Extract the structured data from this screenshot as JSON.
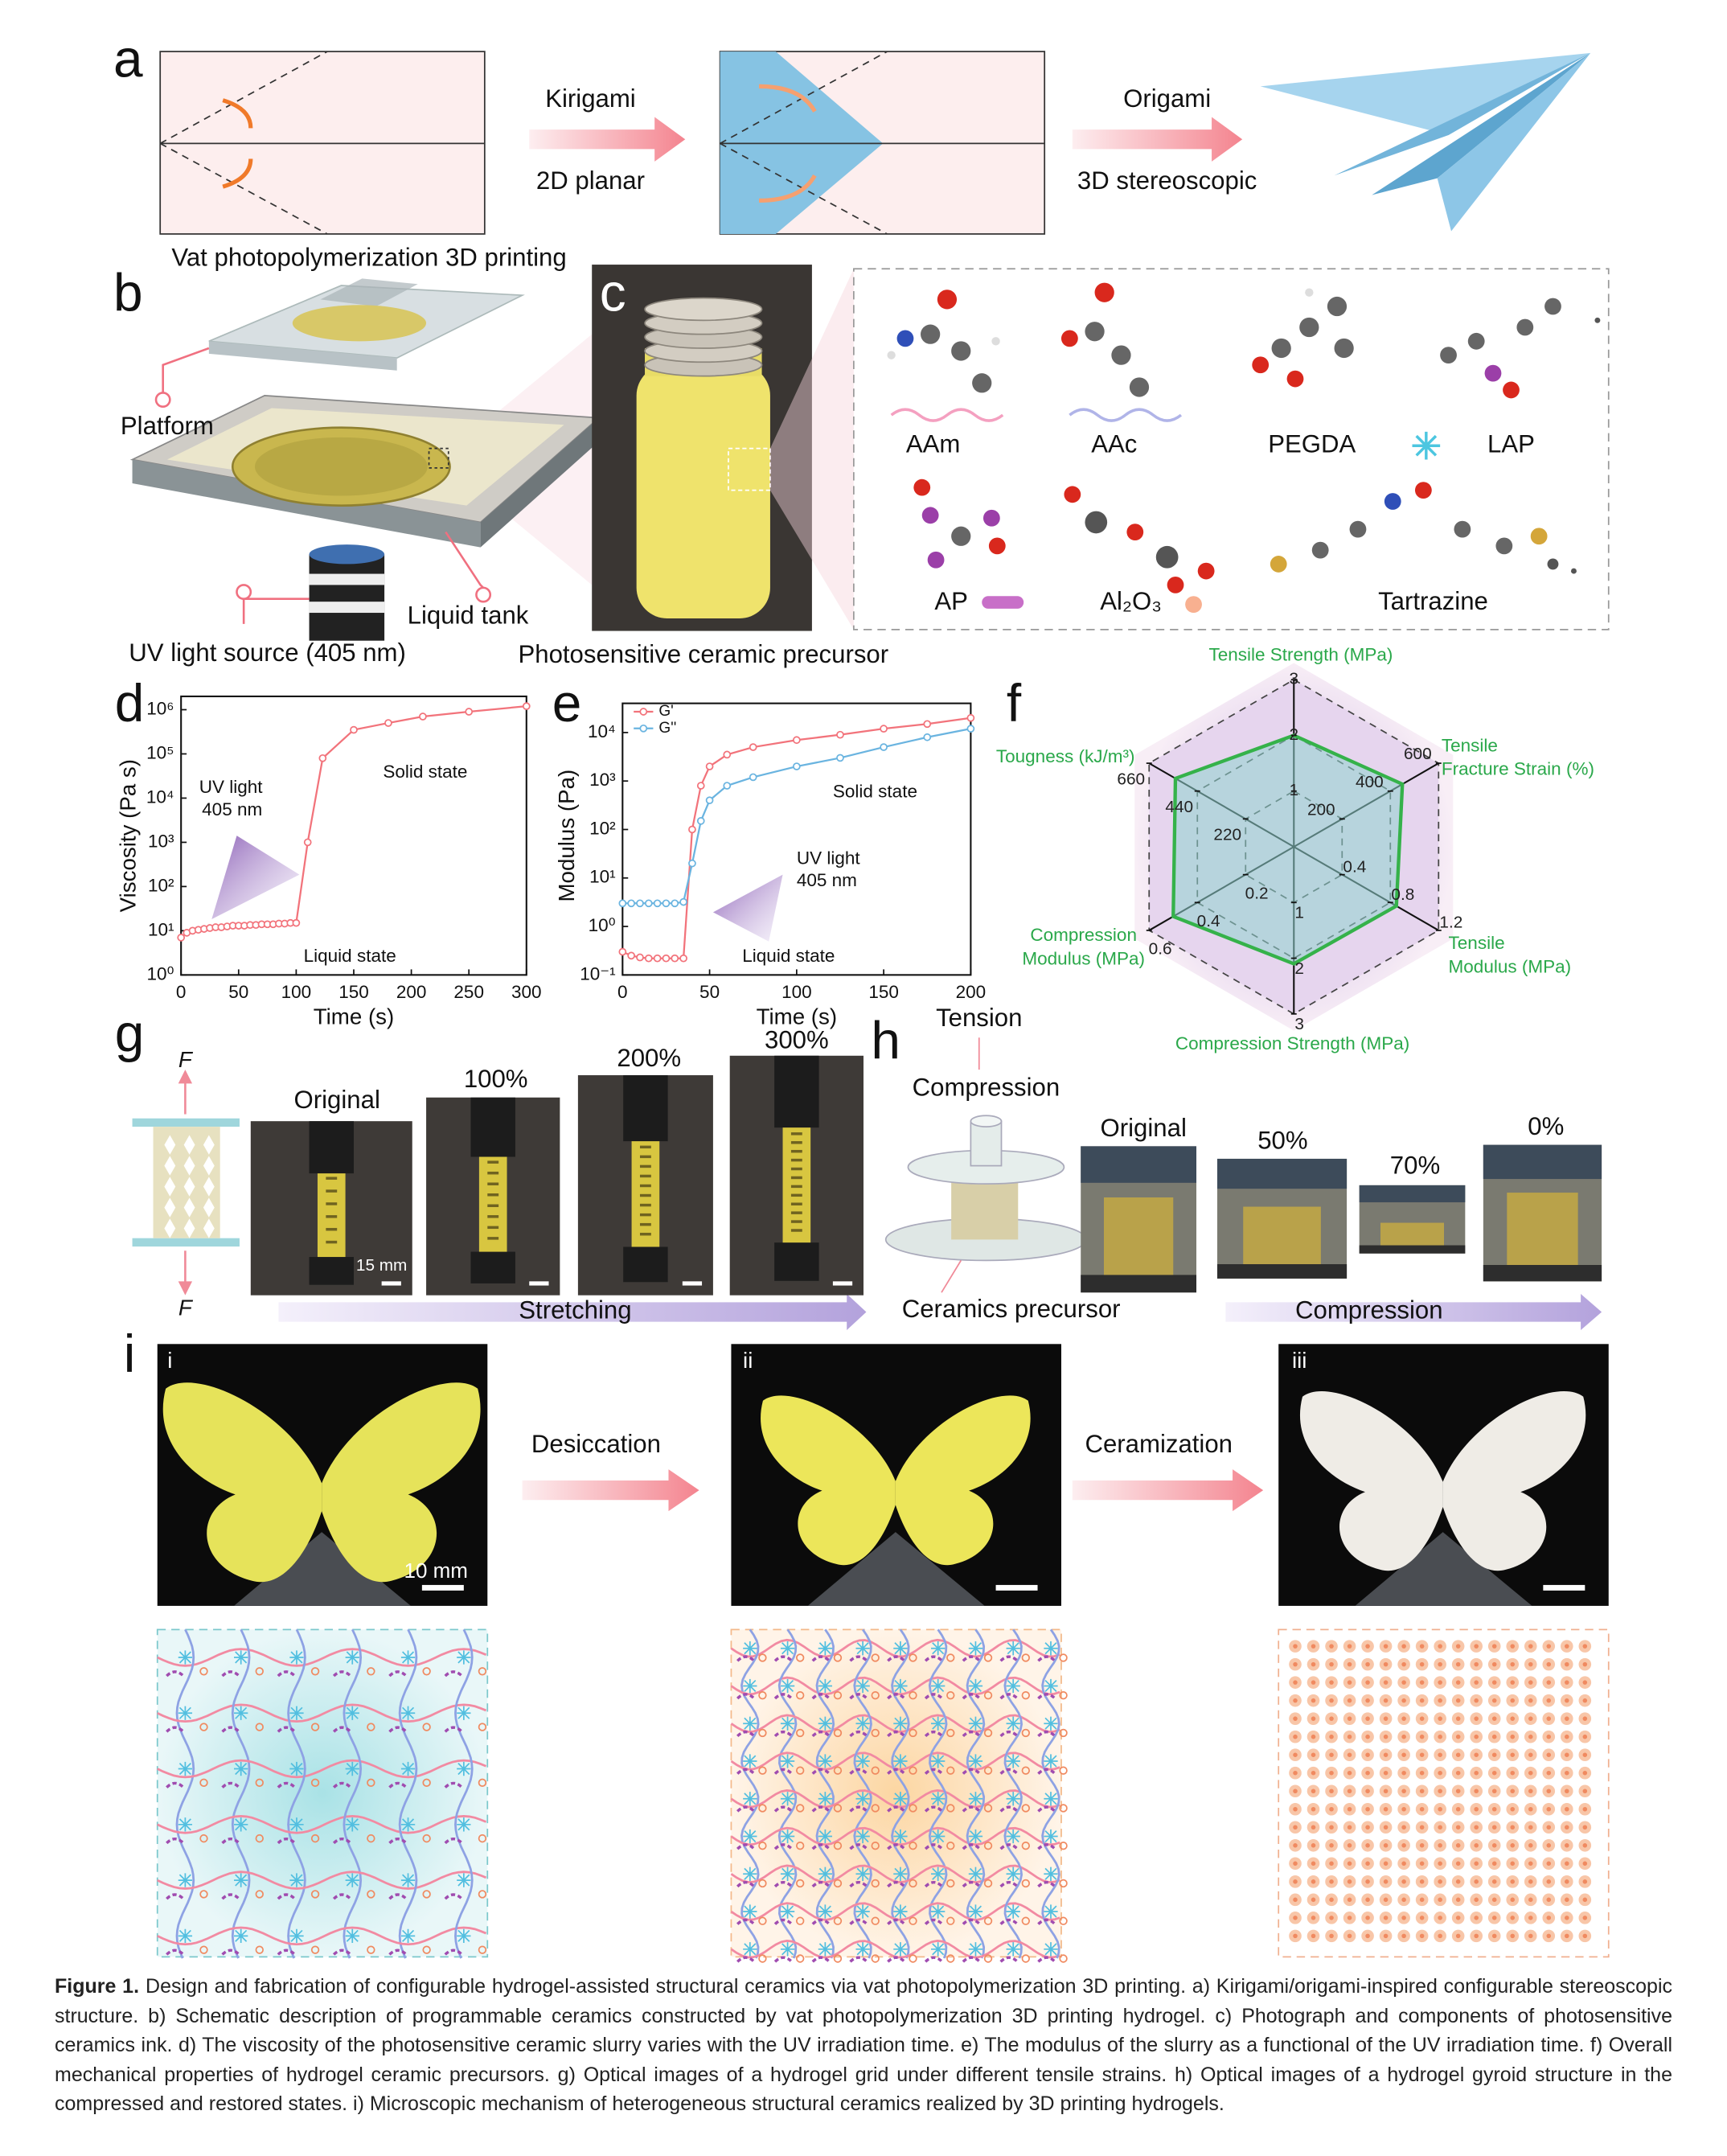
{
  "panels": {
    "a": {
      "label": "a",
      "texts": [
        "Kirigami",
        "2D planar",
        "Origami",
        "3D stereoscopic"
      ]
    },
    "b": {
      "label": "b",
      "texts": [
        "Vat photopolymerization 3D printing",
        "Platform",
        "Liquid tank",
        "UV light source (405 nm)"
      ]
    },
    "c": {
      "label": "c",
      "texts": [
        "Photosensitive ceramic precursor",
        "AAm",
        "AAc",
        "PEGDA",
        "LAP",
        "AP",
        "Al₂O₃",
        "Tartrazine"
      ]
    },
    "d": {
      "label": "d"
    },
    "e": {
      "label": "e"
    },
    "f": {
      "label": "f"
    },
    "g": {
      "label": "g",
      "texts": [
        "F",
        "F",
        "Original",
        "100%",
        "200%",
        "300%",
        "15 mm",
        "Stretching"
      ]
    },
    "h": {
      "label": "h",
      "texts": [
        "Tension",
        "Compression",
        "Original",
        "50%",
        "70%",
        "0%",
        "Ceramics precursor",
        "Compression"
      ]
    },
    "i": {
      "label": "i",
      "texts": [
        "i",
        "ii",
        "iii",
        "Desiccation",
        "Ceramization",
        "10 mm"
      ]
    }
  },
  "chart_data": [
    {
      "type": "line",
      "x_label": "Time (s)",
      "y_label": "Viscosity (Pa s)",
      "log_y": true,
      "xlim": [
        0,
        300
      ],
      "xticks": [
        0,
        50,
        100,
        150,
        200,
        250,
        300
      ],
      "ylim": [
        1,
        2000000
      ],
      "yticks": [
        {
          "value": 1,
          "label": "10⁰"
        },
        {
          "value": 10,
          "label": "10¹"
        },
        {
          "value": 100,
          "label": "10²"
        },
        {
          "value": 1000,
          "label": "10³"
        },
        {
          "value": 10000,
          "label": "10⁴"
        },
        {
          "value": 100000,
          "label": "10⁵"
        },
        {
          "value": 1000000,
          "label": "10⁶"
        }
      ],
      "annotations": [
        "UV light",
        "405 nm",
        "Solid state",
        "Liquid state"
      ],
      "color": "#f2737b",
      "x": [
        0,
        5,
        10,
        15,
        20,
        25,
        30,
        35,
        40,
        45,
        50,
        55,
        60,
        65,
        70,
        75,
        80,
        85,
        90,
        95,
        100,
        110,
        123,
        150,
        180,
        210,
        250,
        300
      ],
      "values": [
        7,
        9,
        10,
        10.5,
        11,
        11.5,
        12,
        12,
        12.5,
        13,
        13,
        13,
        13.5,
        13.5,
        14,
        14,
        14,
        14.5,
        14.5,
        15,
        15,
        1000,
        80000,
        350000,
        500000,
        700000,
        900000,
        1200000
      ]
    },
    {
      "type": "line",
      "x_label": "Time (s)",
      "y_label": "Modulus (Pa)",
      "log_y": true,
      "xlim": [
        0,
        200
      ],
      "xticks": [
        0,
        50,
        100,
        150,
        200
      ],
      "ylim": [
        0.1,
        40000
      ],
      "yticks": [
        {
          "value": 0.1,
          "label": "10⁻¹"
        },
        {
          "value": 1,
          "label": "10⁰"
        },
        {
          "value": 10,
          "label": "10¹"
        },
        {
          "value": 100,
          "label": "10²"
        },
        {
          "value": 1000,
          "label": "10³"
        },
        {
          "value": 10000,
          "label": "10⁴"
        }
      ],
      "annotations": [
        "Solid state",
        "UV light",
        "405 nm",
        "Liquid state"
      ],
      "legend": "upper left",
      "x": [
        0,
        5,
        10,
        15,
        20,
        25,
        30,
        35,
        40,
        45,
        50,
        60,
        75,
        100,
        125,
        150,
        175,
        200
      ],
      "series": [
        {
          "name": "G'",
          "color": "#f2737b",
          "values": [
            0.3,
            0.25,
            0.23,
            0.22,
            0.22,
            0.22,
            0.22,
            0.22,
            100,
            800,
            2000,
            3500,
            5000,
            7000,
            9000,
            12000,
            15000,
            20000
          ]
        },
        {
          "name": "G''",
          "color": "#6ab4e0",
          "values": [
            3,
            3,
            3,
            3,
            3,
            3,
            3,
            3.2,
            20,
            150,
            400,
            800,
            1200,
            2000,
            3000,
            5000,
            8000,
            12000
          ]
        }
      ]
    },
    {
      "type": "radar",
      "color": "#35b24a",
      "fill": "#8fd3cf",
      "axes": [
        {
          "name": "Tensile Strength (MPa)",
          "lim": [
            0,
            3
          ],
          "ticks": [
            1,
            2,
            3
          ]
        },
        {
          "name": "Tensile Fracture Strain (%)",
          "lim": [
            0,
            600
          ],
          "ticks": [
            200,
            400,
            600
          ]
        },
        {
          "name": "Tensile Modulus (MPa)",
          "lim": [
            0,
            1.2
          ],
          "ticks": [
            0.4,
            0.8,
            1.2
          ]
        },
        {
          "name": "Compression Strength (MPa)",
          "lim": [
            0,
            3
          ],
          "ticks": [
            1,
            2,
            3
          ]
        },
        {
          "name": "Compression Modulus (MPa)",
          "lim": [
            0,
            0.6
          ],
          "ticks": [
            0.2,
            0.4,
            0.6
          ]
        },
        {
          "name": "Tougness (kJ/m³)",
          "lim": [
            0,
            660
          ],
          "ticks": [
            220,
            440,
            660
          ]
        }
      ],
      "values": [
        2.0,
        450,
        0.85,
        2.1,
        0.5,
        540
      ]
    }
  ],
  "caption": {
    "label": "Figure 1.",
    "text": "Design and fabrication of configurable hydrogel-assisted structural ceramics via vat photopolymerization 3D printing. a) Kirigami/origami-inspired configurable stereoscopic structure. b) Schematic description of programmable ceramics constructed by vat photopolymerization 3D printing hydrogel. c) Photograph and components of photosensitive ceramics ink. d) The viscosity of the photosensitive ceramic slurry varies with the UV irradiation time. e) The modulus of the slurry as a functional of the UV irradiation time. f) Overall mechanical properties of hydrogel ceramic precursors. g) Optical images of a hydrogel grid under different tensile strains. h) Optical images of a hydrogel gyroid structure in the compressed and restored states. i) Microscopic mechanism of heterogeneous structural ceramics realized by 3D printing hydrogels."
  }
}
